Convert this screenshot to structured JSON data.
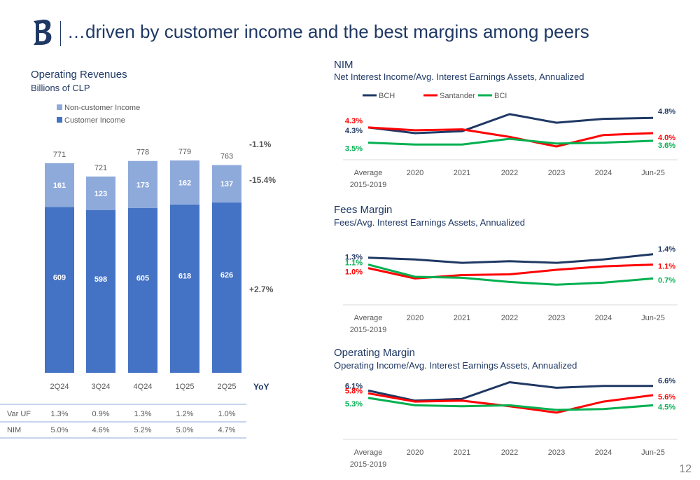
{
  "header": {
    "title": "…driven by customer income and the best margins among peers"
  },
  "page_number": "12",
  "colors": {
    "navy": "#1f3864",
    "customer": "#4472c4",
    "noncustomer": "#8eaadb",
    "red": "#ff0000",
    "green": "#00b050",
    "grey_text": "#595959"
  },
  "revenues": {
    "title": "Operating Revenues",
    "subtitle": "Billions of CLP",
    "yoy_header": "YoY",
    "yoy": {
      "total": "-1.1%",
      "noncustomer": "-15.4%",
      "customer": "+2.7%"
    },
    "table": [
      {
        "label": "Var UF",
        "values": [
          "1.3%",
          "0.9%",
          "1.3%",
          "1.2%",
          "1.0%"
        ]
      },
      {
        "label": "NIM",
        "values": [
          "5.0%",
          "4.6%",
          "5.2%",
          "5.0%",
          "4.7%"
        ]
      }
    ]
  },
  "nim": {
    "title": "NIM",
    "subtitle": "Net Interest Income/Avg. Interest Earnings Assets, Annualized"
  },
  "fees": {
    "title": "Fees Margin",
    "subtitle": "Fees/Avg. Interest Earnings Assets, Annualized"
  },
  "opm": {
    "title": "Operating Margin",
    "subtitle": "Operating Income/Avg. Interest Earnings Assets, Annualized"
  },
  "chart_data": [
    {
      "type": "bar",
      "stacked": true,
      "title": "Operating Revenues",
      "ylabel": "Billions of CLP",
      "categories": [
        "2Q24",
        "3Q24",
        "4Q24",
        "1Q25",
        "2Q25"
      ],
      "series": [
        {
          "name": "Customer Income",
          "values": [
            609,
            598,
            605,
            618,
            626
          ],
          "color": "#4472c4"
        },
        {
          "name": "Non-customer Income",
          "values": [
            161,
            123,
            173,
            162,
            137
          ],
          "color": "#8eaadb"
        }
      ],
      "totals": [
        771,
        721,
        778,
        779,
        763
      ],
      "ylim": [
        0,
        800
      ],
      "legend": "top-left"
    },
    {
      "type": "line",
      "title": "NIM",
      "categories": [
        "Average\n2015-2019",
        "2020",
        "2021",
        "2022",
        "2023",
        "2024",
        "Jun-25"
      ],
      "series": [
        {
          "name": "BCH",
          "values": [
            4.3,
            4.0,
            4.1,
            5.0,
            4.55,
            4.75,
            4.8
          ],
          "color": "#1f3864",
          "first_label": "4.3%",
          "last_label": "4.8%"
        },
        {
          "name": "Santander",
          "values": [
            4.3,
            4.15,
            4.2,
            3.8,
            3.3,
            3.9,
            4.0
          ],
          "color": "#ff0000",
          "first_label": "4.3%",
          "last_label": "4.0%"
        },
        {
          "name": "BCI",
          "values": [
            3.5,
            3.4,
            3.4,
            3.7,
            3.45,
            3.5,
            3.6
          ],
          "color": "#00b050",
          "first_label": "3.5%",
          "last_label": "3.6%"
        }
      ],
      "ylim": [
        2.6,
        5.4
      ],
      "legend": "top"
    },
    {
      "type": "line",
      "title": "Fees Margin",
      "categories": [
        "Average\n2015-2019",
        "2020",
        "2021",
        "2022",
        "2023",
        "2024",
        "Jun-25"
      ],
      "series": [
        {
          "name": "BCH",
          "values": [
            1.3,
            1.25,
            1.15,
            1.2,
            1.15,
            1.25,
            1.4
          ],
          "color": "#1f3864",
          "first_label": "1.3%",
          "last_label": "1.4%"
        },
        {
          "name": "Santander",
          "values": [
            1.0,
            0.7,
            0.8,
            0.82,
            0.95,
            1.05,
            1.1
          ],
          "color": "#ff0000",
          "first_label": "1.0%",
          "last_label": "1.1%"
        },
        {
          "name": "BCI",
          "values": [
            1.1,
            0.75,
            0.72,
            0.6,
            0.52,
            0.58,
            0.7
          ],
          "color": "#00b050",
          "first_label": "1.1%",
          "last_label": "0.7%"
        }
      ],
      "ylim": [
        -0.2,
        1.9
      ]
    },
    {
      "type": "line",
      "title": "Operating Margin",
      "categories": [
        "Average\n2015-2019",
        "2020",
        "2021",
        "2022",
        "2023",
        "2024",
        "Jun-25"
      ],
      "series": [
        {
          "name": "BCH",
          "values": [
            6.1,
            5.0,
            5.2,
            7.0,
            6.4,
            6.6,
            6.6
          ],
          "color": "#1f3864",
          "first_label": "6.1%",
          "last_label": "6.6%"
        },
        {
          "name": "Santander",
          "values": [
            5.8,
            4.9,
            5.0,
            4.4,
            3.7,
            4.9,
            5.6
          ],
          "color": "#ff0000",
          "first_label": "5.8%",
          "last_label": "5.6%"
        },
        {
          "name": "BCI",
          "values": [
            5.3,
            4.5,
            4.4,
            4.5,
            4.0,
            4.1,
            4.5
          ],
          "color": "#00b050",
          "first_label": "5.3%",
          "last_label": "4.5%"
        }
      ],
      "ylim": [
        0.5,
        7.8
      ]
    }
  ]
}
